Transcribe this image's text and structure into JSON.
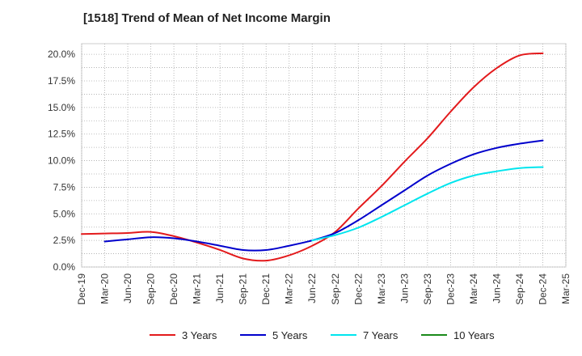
{
  "chart_data": {
    "type": "line",
    "title": "[1518]  Trend of Mean of Net Income Margin",
    "xlabel": "",
    "ylabel": "",
    "ylim": [
      0,
      21
    ],
    "grid": true,
    "legend_position": "bottom",
    "x_ticks": [
      "Dec-19",
      "Mar-20",
      "Jun-20",
      "Sep-20",
      "Dec-20",
      "Mar-21",
      "Jun-21",
      "Sep-21",
      "Dec-21",
      "Mar-22",
      "Jun-22",
      "Sep-22",
      "Dec-22",
      "Mar-23",
      "Jun-23",
      "Sep-23",
      "Dec-23",
      "Mar-24",
      "Jun-24",
      "Sep-24",
      "Dec-24",
      "Mar-25"
    ],
    "y_ticks": [
      {
        "value": 0,
        "label": "0.0%"
      },
      {
        "value": 2.5,
        "label": "2.5%"
      },
      {
        "value": 5,
        "label": "5.0%"
      },
      {
        "value": 7.5,
        "label": "7.5%"
      },
      {
        "value": 10,
        "label": "10.0%"
      },
      {
        "value": 12.5,
        "label": "12.5%"
      },
      {
        "value": 15,
        "label": "15.0%"
      },
      {
        "value": 17.5,
        "label": "17.5%"
      },
      {
        "value": 20,
        "label": "20.0%"
      }
    ],
    "series": [
      {
        "name": "3 Years",
        "color": "#e31a1c",
        "points": [
          [
            "Dec-19",
            3.1
          ],
          [
            "Mar-20",
            3.15
          ],
          [
            "Jun-20",
            3.2
          ],
          [
            "Sep-20",
            3.3
          ],
          [
            "Dec-20",
            2.9
          ],
          [
            "Mar-21",
            2.3
          ],
          [
            "Jun-21",
            1.6
          ],
          [
            "Sep-21",
            0.8
          ],
          [
            "Dec-21",
            0.6
          ],
          [
            "Mar-22",
            1.1
          ],
          [
            "Jun-22",
            2.0
          ],
          [
            "Sep-22",
            3.3
          ],
          [
            "Dec-22",
            5.5
          ],
          [
            "Mar-23",
            7.6
          ],
          [
            "Jun-23",
            9.9
          ],
          [
            "Sep-23",
            12.1
          ],
          [
            "Dec-23",
            14.6
          ],
          [
            "Mar-24",
            16.9
          ],
          [
            "Jun-24",
            18.7
          ],
          [
            "Sep-24",
            19.9
          ],
          [
            "Dec-24",
            20.1
          ]
        ]
      },
      {
        "name": "5 Years",
        "color": "#0000cc",
        "points": [
          [
            "Mar-20",
            2.4
          ],
          [
            "Jun-20",
            2.6
          ],
          [
            "Sep-20",
            2.8
          ],
          [
            "Dec-20",
            2.7
          ],
          [
            "Mar-21",
            2.4
          ],
          [
            "Jun-21",
            2.0
          ],
          [
            "Sep-21",
            1.6
          ],
          [
            "Dec-21",
            1.6
          ],
          [
            "Mar-22",
            2.0
          ],
          [
            "Jun-22",
            2.5
          ],
          [
            "Sep-22",
            3.2
          ],
          [
            "Dec-22",
            4.4
          ],
          [
            "Mar-23",
            5.8
          ],
          [
            "Jun-23",
            7.2
          ],
          [
            "Sep-23",
            8.6
          ],
          [
            "Dec-23",
            9.7
          ],
          [
            "Mar-24",
            10.6
          ],
          [
            "Jun-24",
            11.2
          ],
          [
            "Sep-24",
            11.6
          ],
          [
            "Dec-24",
            11.9
          ]
        ]
      },
      {
        "name": "7 Years",
        "color": "#00e5ee",
        "points": [
          [
            "Jun-22",
            2.5
          ],
          [
            "Sep-22",
            3.0
          ],
          [
            "Dec-22",
            3.7
          ],
          [
            "Mar-23",
            4.7
          ],
          [
            "Jun-23",
            5.8
          ],
          [
            "Sep-23",
            6.9
          ],
          [
            "Dec-23",
            7.9
          ],
          [
            "Mar-24",
            8.6
          ],
          [
            "Jun-24",
            9.0
          ],
          [
            "Sep-24",
            9.3
          ],
          [
            "Dec-24",
            9.4
          ]
        ]
      },
      {
        "name": "10 Years",
        "color": "#1a8a1a",
        "points": []
      }
    ]
  }
}
